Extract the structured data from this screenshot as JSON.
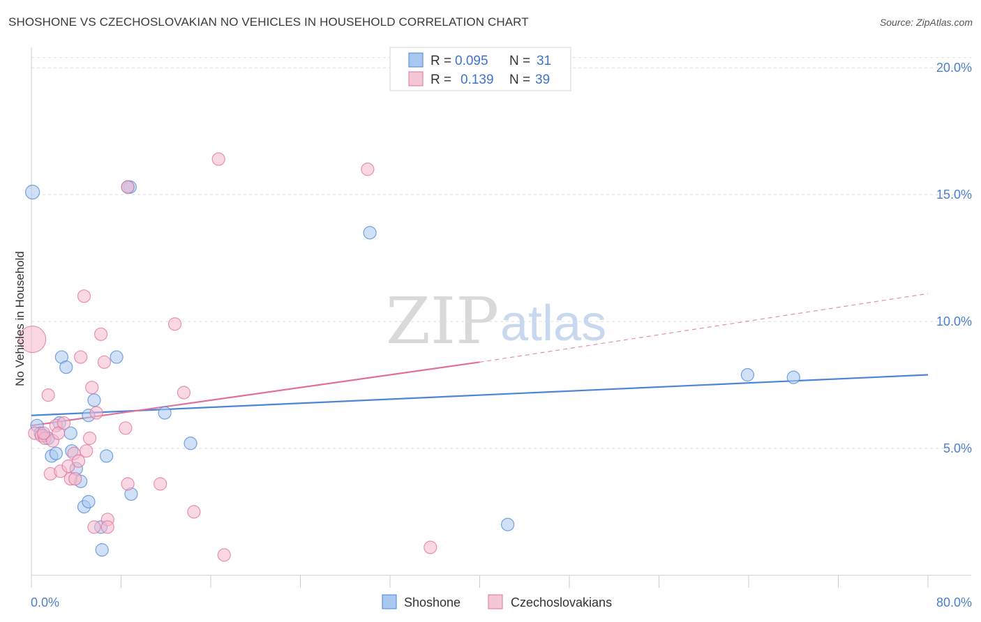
{
  "title": "SHOSHONE VS CZECHOSLOVAKIAN NO VEHICLES IN HOUSEHOLD CORRELATION CHART",
  "source": "Source: ZipAtlas.com",
  "watermark": {
    "zip": "ZIP",
    "atlas": "atlas"
  },
  "colors": {
    "shoshone": "#4a86d8",
    "shoshone_fill": "#a9c8f0",
    "czech": "#e0709a",
    "czech_fill": "#f5b8cc",
    "axis_text": "#4a7fd0",
    "grid": "#dddddd"
  },
  "legend": {
    "rows": [
      {
        "r_label": "R =",
        "r_value": "0.095",
        "n_label": "N =",
        "n_value": "31"
      },
      {
        "r_label": "R =",
        "r_value": "0.139",
        "n_label": "N =",
        "n_value": "39"
      }
    ]
  },
  "bottom_legend": {
    "items": [
      "Shoshone",
      "Czechoslovakians"
    ]
  },
  "chart_data": {
    "type": "scatter",
    "ylabel": "No Vehicles in Household",
    "xlabel": "",
    "xlim": [
      0,
      80
    ],
    "ylim": [
      0,
      20.5
    ],
    "x_tick_labels": [
      {
        "value": 0,
        "label": "0.0%"
      },
      {
        "value": 80,
        "label": "80.0%"
      }
    ],
    "y_tick_labels": [
      {
        "value": 5,
        "label": "5.0%"
      },
      {
        "value": 10,
        "label": "10.0%"
      },
      {
        "value": 15,
        "label": "15.0%"
      },
      {
        "value": 20,
        "label": "20.0%"
      }
    ],
    "x_minor_ticks": [
      0,
      8,
      16,
      24,
      32,
      40,
      48,
      56,
      64,
      72,
      80
    ],
    "series": [
      {
        "name": "Shoshone",
        "color": "#4a86d8",
        "fill": "#a9c8f0",
        "points": [
          {
            "x": 0.1,
            "y": 15.1,
            "s": 10
          },
          {
            "x": 0.5,
            "y": 5.9,
            "s": 9
          },
          {
            "x": 0.8,
            "y": 5.6,
            "s": 9
          },
          {
            "x": 1.1,
            "y": 5.5,
            "s": 9
          },
          {
            "x": 1.5,
            "y": 5.4,
            "s": 9
          },
          {
            "x": 1.8,
            "y": 4.7,
            "s": 9
          },
          {
            "x": 2.2,
            "y": 4.8,
            "s": 9
          },
          {
            "x": 2.5,
            "y": 6.0,
            "s": 9
          },
          {
            "x": 2.7,
            "y": 8.6,
            "s": 9
          },
          {
            "x": 3.1,
            "y": 8.2,
            "s": 9
          },
          {
            "x": 3.5,
            "y": 5.6,
            "s": 9
          },
          {
            "x": 3.6,
            "y": 4.9,
            "s": 9
          },
          {
            "x": 4.0,
            "y": 4.2,
            "s": 9
          },
          {
            "x": 4.4,
            "y": 3.7,
            "s": 9
          },
          {
            "x": 4.7,
            "y": 2.7,
            "s": 9
          },
          {
            "x": 5.1,
            "y": 2.9,
            "s": 9
          },
          {
            "x": 5.1,
            "y": 6.3,
            "s": 9
          },
          {
            "x": 5.6,
            "y": 6.9,
            "s": 9
          },
          {
            "x": 6.2,
            "y": 1.9,
            "s": 9
          },
          {
            "x": 6.3,
            "y": 1.0,
            "s": 9
          },
          {
            "x": 6.7,
            "y": 4.7,
            "s": 9
          },
          {
            "x": 7.6,
            "y": 8.6,
            "s": 9
          },
          {
            "x": 8.8,
            "y": 15.3,
            "s": 9
          },
          {
            "x": 8.9,
            "y": 3.2,
            "s": 9
          },
          {
            "x": 8.6,
            "y": 15.3,
            "s": 9
          },
          {
            "x": 11.9,
            "y": 6.4,
            "s": 9
          },
          {
            "x": 14.2,
            "y": 5.2,
            "s": 9
          },
          {
            "x": 30.2,
            "y": 13.5,
            "s": 9
          },
          {
            "x": 42.5,
            "y": 2.0,
            "s": 9
          },
          {
            "x": 63.9,
            "y": 7.9,
            "s": 9
          },
          {
            "x": 68.0,
            "y": 7.8,
            "s": 9
          }
        ],
        "trend": {
          "x0": 0,
          "y0": 6.3,
          "x1": 80,
          "y1": 7.9,
          "style": "solid"
        }
      },
      {
        "name": "Czechoslovakians",
        "color": "#e0709a",
        "fill": "#f5b8cc",
        "points": [
          {
            "x": 0.1,
            "y": 9.3,
            "s": 19
          },
          {
            "x": 0.3,
            "y": 5.6,
            "s": 9
          },
          {
            "x": 0.9,
            "y": 5.5,
            "s": 9
          },
          {
            "x": 1.2,
            "y": 5.4,
            "s": 9
          },
          {
            "x": 1.5,
            "y": 7.1,
            "s": 9
          },
          {
            "x": 1.7,
            "y": 4.0,
            "s": 9
          },
          {
            "x": 1.9,
            "y": 5.3,
            "s": 9
          },
          {
            "x": 2.2,
            "y": 5.9,
            "s": 9
          },
          {
            "x": 2.4,
            "y": 5.6,
            "s": 9
          },
          {
            "x": 2.6,
            "y": 4.1,
            "s": 9
          },
          {
            "x": 2.9,
            "y": 6.0,
            "s": 9
          },
          {
            "x": 3.3,
            "y": 4.3,
            "s": 9
          },
          {
            "x": 3.5,
            "y": 3.8,
            "s": 9
          },
          {
            "x": 3.8,
            "y": 4.8,
            "s": 9
          },
          {
            "x": 4.2,
            "y": 4.5,
            "s": 9
          },
          {
            "x": 4.4,
            "y": 8.6,
            "s": 9
          },
          {
            "x": 4.7,
            "y": 11.0,
            "s": 9
          },
          {
            "x": 4.9,
            "y": 4.9,
            "s": 9
          },
          {
            "x": 5.2,
            "y": 5.4,
            "s": 9
          },
          {
            "x": 5.4,
            "y": 7.4,
            "s": 9
          },
          {
            "x": 5.6,
            "y": 1.9,
            "s": 9
          },
          {
            "x": 5.8,
            "y": 6.4,
            "s": 9
          },
          {
            "x": 6.2,
            "y": 9.5,
            "s": 9
          },
          {
            "x": 6.5,
            "y": 8.4,
            "s": 9
          },
          {
            "x": 6.8,
            "y": 2.2,
            "s": 9
          },
          {
            "x": 6.8,
            "y": 1.9,
            "s": 9
          },
          {
            "x": 8.6,
            "y": 15.3,
            "s": 9
          },
          {
            "x": 8.4,
            "y": 5.8,
            "s": 9
          },
          {
            "x": 8.6,
            "y": 3.6,
            "s": 9
          },
          {
            "x": 11.5,
            "y": 3.6,
            "s": 9
          },
          {
            "x": 12.8,
            "y": 9.9,
            "s": 9
          },
          {
            "x": 13.6,
            "y": 7.2,
            "s": 9
          },
          {
            "x": 14.5,
            "y": 2.5,
            "s": 9
          },
          {
            "x": 16.7,
            "y": 16.4,
            "s": 9
          },
          {
            "x": 17.2,
            "y": 0.8,
            "s": 9
          },
          {
            "x": 30.0,
            "y": 16.0,
            "s": 9
          },
          {
            "x": 35.6,
            "y": 1.1,
            "s": 9
          },
          {
            "x": 3.9,
            "y": 3.8,
            "s": 9
          },
          {
            "x": 1.1,
            "y": 5.6,
            "s": 9
          }
        ],
        "trend": {
          "x0": 0,
          "y0": 5.9,
          "x1": 40,
          "y1": 8.4,
          "style": "solid",
          "dash_x1": 80,
          "dash_y1": 11.1
        }
      }
    ]
  }
}
